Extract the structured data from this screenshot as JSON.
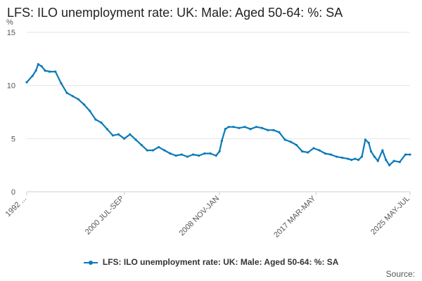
{
  "header": {
    "title": "LFS: ILO unemployment rate: UK: Male: Aged 50-64: %: SA"
  },
  "legend": {
    "label": "LFS: ILO unemployment rate: UK: Male: Aged 50-64: %: SA"
  },
  "footer": {
    "source_label": "Source:"
  },
  "colors": {
    "series": "#0b7ab8",
    "grid": "#e6e6e6",
    "axis": "#cccccc"
  },
  "chart_data": {
    "type": "line",
    "title": "LFS: ILO unemployment rate: UK: Male: Aged 50-64: %: SA",
    "ylabel": "%",
    "xlabel": "",
    "ylim": [
      0,
      15
    ],
    "yticks": [
      0,
      5,
      10,
      15
    ],
    "x_tick_labels": [
      "1992 ...",
      "2000 JUL-SEP",
      "2008 NOV-JAN",
      "2017 MAR-MAY",
      "2025 MAY-JUL"
    ],
    "x_tick_years": [
      1992.0,
      2000.5,
      2008.8,
      2017.2,
      2025.4
    ],
    "x_range": [
      1992.0,
      2025.4
    ],
    "grid": true,
    "legend_position": "bottom",
    "series": [
      {
        "name": "LFS: ILO unemployment rate: UK: Male: Aged 50-64: %: SA",
        "x": [
          1992.0,
          1992.5,
          1992.8,
          1993.0,
          1993.3,
          1993.6,
          1994.0,
          1994.5,
          1995.0,
          1995.5,
          1996.0,
          1996.5,
          1997.0,
          1997.5,
          1998.0,
          1998.5,
          1999.0,
          1999.5,
          2000.0,
          2000.5,
          2001.0,
          2001.5,
          2002.0,
          2002.5,
          2003.0,
          2003.5,
          2004.0,
          2004.5,
          2005.0,
          2005.5,
          2006.0,
          2006.5,
          2007.0,
          2007.5,
          2008.0,
          2008.5,
          2008.8,
          2009.0,
          2009.3,
          2009.6,
          2010.0,
          2010.5,
          2011.0,
          2011.5,
          2012.0,
          2012.5,
          2013.0,
          2013.5,
          2014.0,
          2014.5,
          2015.0,
          2015.5,
          2016.0,
          2016.5,
          2017.0,
          2017.5,
          2018.0,
          2018.5,
          2019.0,
          2019.5,
          2020.0,
          2020.3,
          2020.6,
          2020.9,
          2021.2,
          2021.5,
          2021.8,
          2022.0,
          2022.3,
          2022.6,
          2023.0,
          2023.3,
          2023.6,
          2024.0,
          2024.5,
          2025.0,
          2025.4
        ],
        "values": [
          10.3,
          10.9,
          11.4,
          12.0,
          11.8,
          11.4,
          11.3,
          11.3,
          10.2,
          9.3,
          9.0,
          8.7,
          8.2,
          7.6,
          6.8,
          6.5,
          5.9,
          5.3,
          5.4,
          5.0,
          5.4,
          4.9,
          4.4,
          3.9,
          3.9,
          4.2,
          3.9,
          3.6,
          3.4,
          3.5,
          3.3,
          3.5,
          3.4,
          3.6,
          3.6,
          3.4,
          3.8,
          4.8,
          5.9,
          6.1,
          6.1,
          6.0,
          6.1,
          5.9,
          6.1,
          6.0,
          5.8,
          5.8,
          5.6,
          4.9,
          4.7,
          4.4,
          3.8,
          3.7,
          4.1,
          3.9,
          3.6,
          3.5,
          3.3,
          3.2,
          3.1,
          3.0,
          3.1,
          3.0,
          3.3,
          4.9,
          4.6,
          3.8,
          3.3,
          2.9,
          3.9,
          3.0,
          2.5,
          2.9,
          2.8,
          3.5,
          3.5
        ]
      }
    ]
  }
}
